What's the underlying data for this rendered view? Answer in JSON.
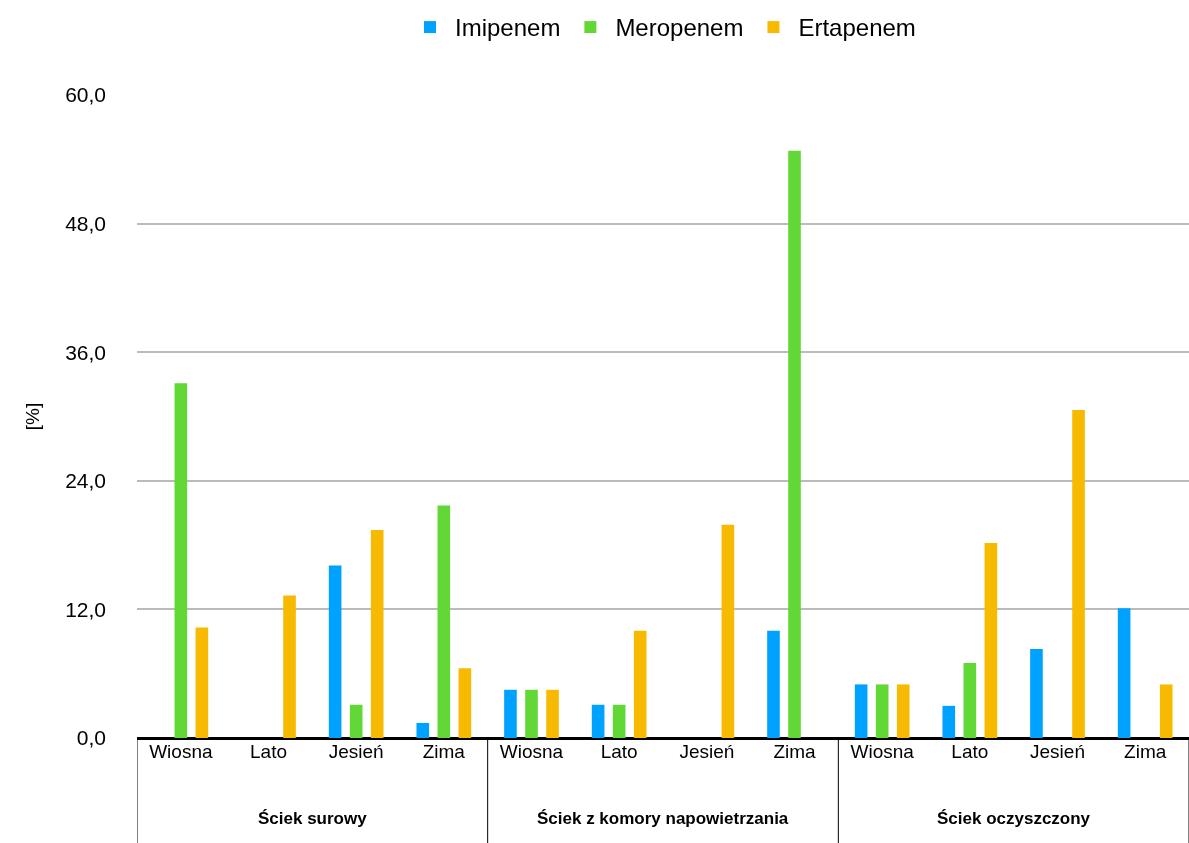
{
  "chart_data": {
    "type": "bar",
    "ylabel": "[%]",
    "categories": [
      "Wiosna",
      "Lato",
      "Jesień",
      "Zima",
      "Wiosna",
      "Lato",
      "Jesień",
      "Zima",
      "Wiosna",
      "Lato",
      "Jesień",
      "Zima"
    ],
    "series": [
      {
        "name": "Imipenem",
        "color": "#00a2ff",
        "values": [
          0,
          0,
          16.1,
          1.4,
          4.5,
          3.1,
          0,
          10.0,
          5.0,
          3.0,
          8.3,
          12.1
        ]
      },
      {
        "name": "Meropenem",
        "color": "#61d836",
        "values": [
          33.1,
          0,
          3.1,
          21.7,
          4.5,
          3.1,
          0,
          54.8,
          5.0,
          7.0,
          0,
          0
        ]
      },
      {
        "name": "Ertapenem",
        "color": "#f8ba00",
        "values": [
          10.3,
          13.3,
          19.4,
          6.5,
          4.5,
          10.0,
          19.9,
          0,
          5.0,
          18.2,
          30.6,
          5.0
        ]
      }
    ],
    "annotations": [
      "Ściek surowy",
      "Ściek z komory napowietrzania",
      "Ściek oczyszczony"
    ],
    "ylim": [
      0,
      60
    ],
    "yticks": [
      {
        "value": 0,
        "label": "0,0"
      },
      {
        "value": 12,
        "label": "12,0"
      },
      {
        "value": 24,
        "label": "24,0"
      },
      {
        "value": 36,
        "label": "36,0"
      },
      {
        "value": 48,
        "label": "48,0"
      },
      {
        "value": 60,
        "label": "60,0"
      }
    ],
    "grid": "y",
    "legend": "top"
  }
}
